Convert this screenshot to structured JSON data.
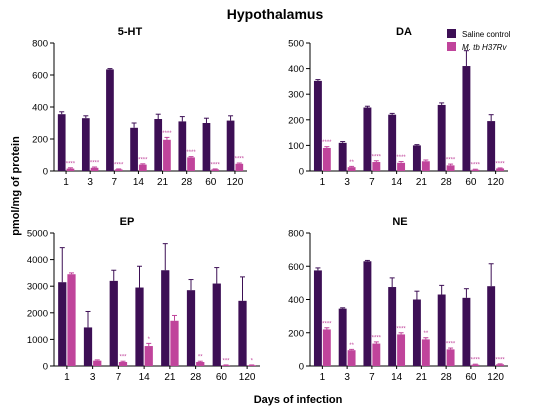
{
  "figure": {
    "title": "Hypothalamus",
    "ylabel": "pmol/mg of protein",
    "xlabel": "Days of infection"
  },
  "legend": {
    "entries": [
      {
        "label": "Saline control",
        "color": "#3d0f55"
      },
      {
        "label": "M. tb H37Rv",
        "color": "#c0449b"
      }
    ]
  },
  "chart_data": [
    {
      "type": "bar",
      "title": "5-HT",
      "categories": [
        "1",
        "3",
        "7",
        "14",
        "21",
        "28",
        "60",
        "120"
      ],
      "ylim": [
        0,
        800
      ],
      "yticks": [
        "0",
        "200",
        "400",
        "600",
        "800"
      ],
      "series": [
        {
          "name": "Saline control",
          "values": [
            355,
            330,
            635,
            270,
            325,
            310,
            300,
            315
          ],
          "errors": [
            15,
            15,
            5,
            30,
            30,
            30,
            30,
            30
          ]
        },
        {
          "name": "M. tb H37Rv",
          "values": [
            15,
            20,
            10,
            40,
            195,
            85,
            10,
            45
          ],
          "errors": [
            5,
            5,
            3,
            5,
            15,
            5,
            3,
            5
          ]
        }
      ],
      "significance": [
        "****",
        "****",
        "****",
        "****",
        "****",
        "****",
        "****",
        "****"
      ]
    },
    {
      "type": "bar",
      "title": "DA",
      "categories": [
        "1",
        "3",
        "7",
        "14",
        "21",
        "28",
        "60",
        "120"
      ],
      "ylim": [
        0,
        500
      ],
      "yticks": [
        "0",
        "100",
        "200",
        "300",
        "400",
        "500"
      ],
      "series": [
        {
          "name": "Saline control",
          "values": [
            352,
            110,
            248,
            220,
            100,
            258,
            410,
            195
          ],
          "errors": [
            5,
            5,
            5,
            5,
            3,
            8,
            60,
            25
          ]
        },
        {
          "name": "M. tb H37Rv",
          "values": [
            90,
            15,
            35,
            32,
            38,
            22,
            5,
            10
          ],
          "errors": [
            5,
            3,
            5,
            5,
            5,
            5,
            2,
            2
          ]
        }
      ],
      "significance": [
        "****",
        "**",
        "****",
        "****",
        "",
        "****",
        "****",
        "****"
      ]
    },
    {
      "type": "bar",
      "title": "EP",
      "categories": [
        "1",
        "3",
        "7",
        "14",
        "21",
        "28",
        "60",
        "120"
      ],
      "ylim": [
        0,
        5000
      ],
      "yticks": [
        "0",
        "1000",
        "2000",
        "3000",
        "4000",
        "5000"
      ],
      "series": [
        {
          "name": "Saline control",
          "values": [
            3150,
            1450,
            3200,
            2950,
            3600,
            2850,
            3100,
            2450
          ],
          "errors": [
            1300,
            600,
            400,
            800,
            1000,
            400,
            600,
            900
          ]
        },
        {
          "name": "M. tb H37Rv",
          "values": [
            3450,
            200,
            150,
            750,
            1700,
            150,
            30,
            30
          ],
          "errors": [
            50,
            30,
            30,
            100,
            200,
            30,
            10,
            10
          ]
        }
      ],
      "significance": [
        "",
        "",
        "***",
        "*",
        "",
        "**",
        "***",
        "*"
      ]
    },
    {
      "type": "bar",
      "title": "NE",
      "categories": [
        "1",
        "3",
        "7",
        "14",
        "21",
        "28",
        "60",
        "120"
      ],
      "ylim": [
        0,
        800
      ],
      "yticks": [
        "0",
        "200",
        "400",
        "600",
        "800"
      ],
      "series": [
        {
          "name": "Saline control",
          "values": [
            575,
            345,
            630,
            475,
            400,
            430,
            410,
            480
          ],
          "errors": [
            15,
            5,
            5,
            55,
            50,
            55,
            55,
            135
          ]
        },
        {
          "name": "M. tb H37Rv",
          "values": [
            220,
            95,
            135,
            190,
            160,
            100,
            8,
            10
          ],
          "errors": [
            10,
            5,
            10,
            10,
            10,
            8,
            3,
            3
          ]
        }
      ],
      "significance": [
        "****",
        "**",
        "****",
        "****",
        "**",
        "****",
        "****",
        "****"
      ]
    }
  ]
}
